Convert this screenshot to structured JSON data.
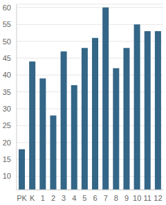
{
  "chart_data": {
    "type": "bar",
    "categories": [
      "PK",
      "K",
      "1",
      "2",
      "3",
      "4",
      "5",
      "6",
      "7",
      "8",
      "9",
      "10",
      "11",
      "12"
    ],
    "values": [
      18,
      44,
      39,
      28,
      47,
      37,
      48,
      51,
      60,
      42,
      48,
      55,
      53,
      53
    ],
    "color": "#336687",
    "ylim": [
      6,
      61
    ],
    "yticks": [
      10,
      15,
      20,
      25,
      30,
      35,
      40,
      45,
      50,
      55,
      60
    ],
    "grid": true
  }
}
